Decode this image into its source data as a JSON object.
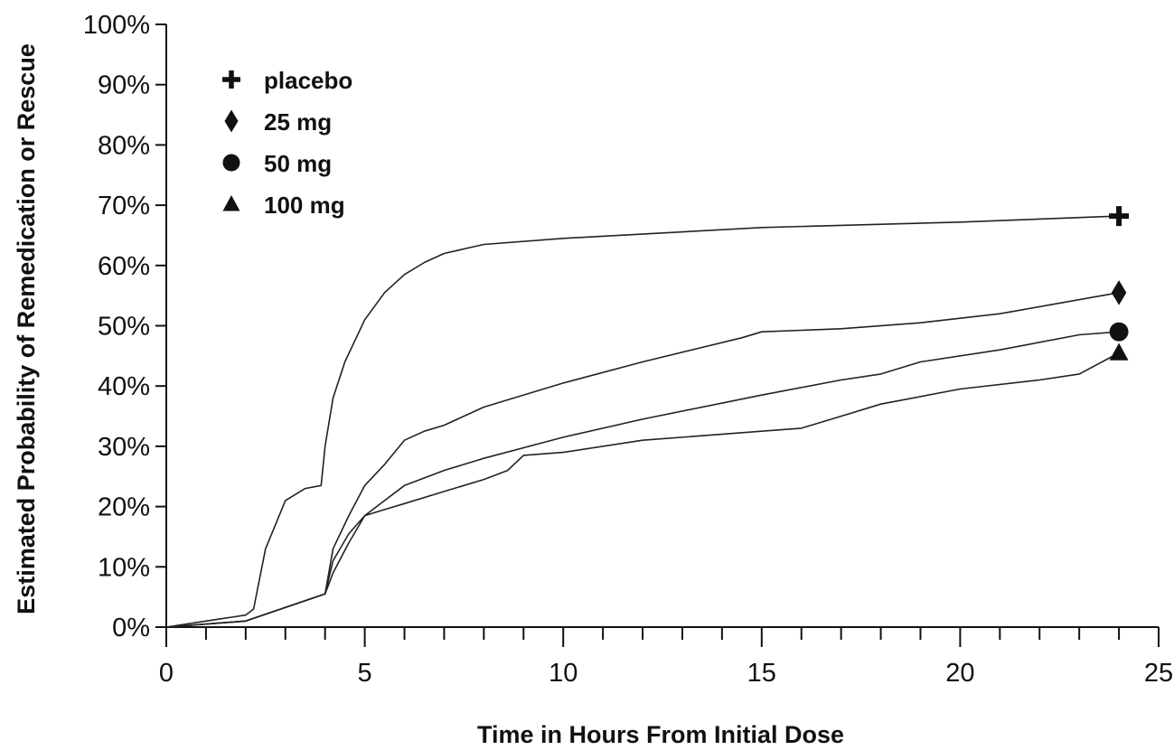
{
  "chart_data": {
    "type": "line",
    "title": "",
    "xlabel": "Time in Hours From Initial Dose",
    "ylabel": "Estimated Probability of Remedication or Rescue",
    "xlim": [
      0,
      25
    ],
    "ylim": [
      0,
      100
    ],
    "x_ticks": [
      0,
      5,
      10,
      15,
      20,
      25
    ],
    "x_tick_labels": [
      "0",
      "5",
      "10",
      "15",
      "20",
      "25"
    ],
    "y_ticks": [
      0,
      10,
      20,
      30,
      40,
      50,
      60,
      70,
      80,
      90,
      100
    ],
    "y_tick_labels": [
      "0%",
      "10%",
      "20%",
      "30%",
      "40%",
      "50%",
      "60%",
      "70%",
      "80%",
      "90%",
      "100%"
    ],
    "grid": false,
    "legend_position": "top-left",
    "line_color": "#222222",
    "series": [
      {
        "name": "placebo",
        "marker": "plus",
        "x": [
          0,
          1,
          2,
          2.2,
          2.5,
          3,
          3.5,
          3.9,
          4,
          4.2,
          4.5,
          5,
          5.5,
          6,
          6.5,
          7,
          8,
          10,
          15,
          20,
          24
        ],
        "y": [
          0,
          1,
          2,
          3,
          13,
          21,
          23,
          23.5,
          30,
          38,
          44,
          51,
          55.5,
          58.5,
          60.5,
          62,
          63.5,
          64.5,
          66.3,
          67.2,
          68.2
        ]
      },
      {
        "name": "25 mg",
        "marker": "diamond",
        "x": [
          0,
          2,
          4,
          4.2,
          4.6,
          5,
          5.5,
          6,
          6.5,
          7,
          8,
          10,
          12,
          14.5,
          15,
          17,
          19,
          21,
          24
        ],
        "y": [
          0,
          1,
          5.5,
          13,
          18.5,
          23.5,
          27,
          31,
          32.5,
          33.5,
          36.5,
          40.5,
          44,
          48,
          49,
          49.5,
          50.5,
          52,
          55.5
        ]
      },
      {
        "name": "50 mg",
        "marker": "circle",
        "x": [
          0,
          2,
          4,
          4.2,
          4.6,
          5,
          5.5,
          6,
          7,
          8,
          10,
          12,
          15,
          17,
          18,
          19,
          21,
          23,
          24
        ],
        "y": [
          0,
          1,
          5.5,
          11,
          15.5,
          18.5,
          21,
          23.5,
          26,
          28,
          31.5,
          34.5,
          38.5,
          41,
          42,
          44,
          46,
          48.5,
          49
        ]
      },
      {
        "name": "100 mg",
        "marker": "triangle",
        "x": [
          0,
          2,
          4,
          4.2,
          4.6,
          5,
          5.5,
          6,
          7,
          8,
          8.6,
          9,
          10,
          12,
          15,
          16,
          17,
          18,
          20,
          22,
          23,
          24
        ],
        "y": [
          0,
          1,
          5.5,
          9,
          14,
          18.5,
          19.5,
          20.5,
          22.5,
          24.5,
          26,
          28.5,
          29,
          31,
          32.5,
          33,
          35,
          37,
          39.5,
          41,
          42,
          45.5
        ]
      }
    ]
  }
}
